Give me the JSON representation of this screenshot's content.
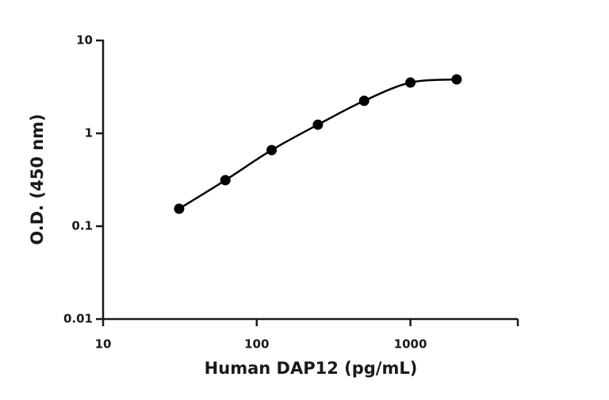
{
  "chart_data": {
    "type": "scatter",
    "x_label": "Human DAP12 (pg/mL)",
    "y_label": "O.D. (450 nm)",
    "x_log": true,
    "y_log": true,
    "xlim": [
      10,
      5000
    ],
    "ylim": [
      0.01,
      10
    ],
    "xticks": [
      10,
      100,
      1000
    ],
    "yticks": [
      0.01,
      0.1,
      1,
      10
    ],
    "x": [
      31.25,
      62.5,
      125,
      250,
      500,
      1000,
      2000
    ],
    "values": [
      0.154,
      0.313,
      0.66,
      1.24,
      2.24,
      3.52,
      3.81
    ],
    "color": "#000000",
    "fit_curve": true
  }
}
